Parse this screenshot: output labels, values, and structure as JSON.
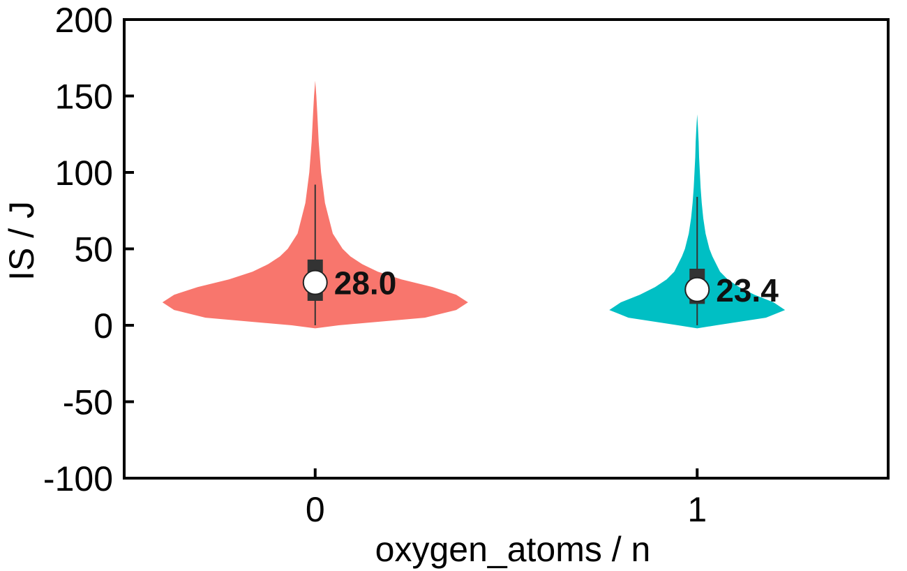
{
  "chart_data": {
    "type": "violin",
    "xlabel": "oxygen_atoms / n",
    "ylabel": "IS / J",
    "ylim": [
      -100,
      200
    ],
    "yticks": [
      "200",
      "150",
      "100",
      "50",
      "0",
      "-50",
      "-100"
    ],
    "categories": [
      "0",
      "1"
    ],
    "grid": false,
    "violins": [
      {
        "category": "0",
        "color": "#F8766D",
        "min": -2,
        "max": 160,
        "whisker_low": 0,
        "whisker_high": 92,
        "q1": 16,
        "q3": 43,
        "mean": 28.0,
        "mean_label": "28.0",
        "max_halfwidth": 0.4,
        "density": [
          [
            -2,
            0.0
          ],
          [
            0,
            0.06
          ],
          [
            5,
            0.28
          ],
          [
            10,
            0.36
          ],
          [
            15,
            0.39
          ],
          [
            20,
            0.36
          ],
          [
            25,
            0.3
          ],
          [
            30,
            0.22
          ],
          [
            35,
            0.16
          ],
          [
            40,
            0.12
          ],
          [
            45,
            0.09
          ],
          [
            50,
            0.07
          ],
          [
            60,
            0.045
          ],
          [
            70,
            0.035
          ],
          [
            80,
            0.025
          ],
          [
            90,
            0.02
          ],
          [
            100,
            0.015
          ],
          [
            110,
            0.012
          ],
          [
            120,
            0.009
          ],
          [
            130,
            0.007
          ],
          [
            140,
            0.005
          ],
          [
            150,
            0.003
          ],
          [
            160,
            0.0
          ]
        ]
      },
      {
        "category": "1",
        "color": "#00BFC4",
        "min": -2,
        "max": 138,
        "whisker_low": 0,
        "whisker_high": 84,
        "q1": 14,
        "q3": 37,
        "mean": 23.4,
        "mean_label": "23.4",
        "max_halfwidth": 0.23,
        "density": [
          [
            -2,
            0.0
          ],
          [
            0,
            0.05
          ],
          [
            5,
            0.18
          ],
          [
            10,
            0.23
          ],
          [
            15,
            0.2
          ],
          [
            20,
            0.15
          ],
          [
            25,
            0.11
          ],
          [
            30,
            0.08
          ],
          [
            35,
            0.06
          ],
          [
            40,
            0.05
          ],
          [
            45,
            0.04
          ],
          [
            50,
            0.032
          ],
          [
            60,
            0.022
          ],
          [
            70,
            0.016
          ],
          [
            80,
            0.012
          ],
          [
            90,
            0.009
          ],
          [
            100,
            0.007
          ],
          [
            110,
            0.005
          ],
          [
            120,
            0.004
          ],
          [
            130,
            0.002
          ],
          [
            138,
            0.0
          ]
        ]
      }
    ]
  }
}
